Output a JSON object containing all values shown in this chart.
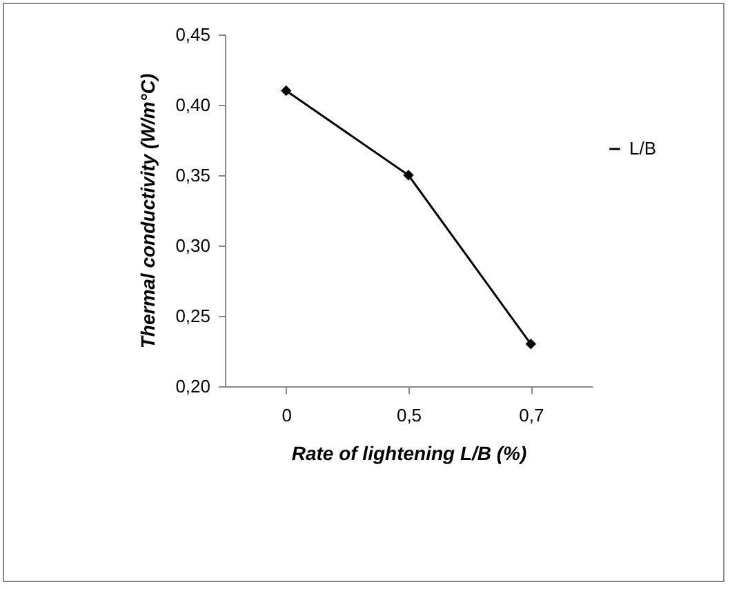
{
  "chart_data": {
    "type": "line",
    "xlabel": "Rate of lightening L/B (%)",
    "ylabel": "Thermal conductivity (W/m°C)",
    "categories": [
      "0",
      "0,5",
      "0,7"
    ],
    "series": [
      {
        "name": "L/B",
        "color": "#000000",
        "values": [
          0.41,
          0.35,
          0.23
        ]
      }
    ],
    "ylim": [
      0.2,
      0.45
    ],
    "yticks": [
      {
        "value": 0.2,
        "label": "0,20"
      },
      {
        "value": 0.25,
        "label": "0,25"
      },
      {
        "value": 0.3,
        "label": "0,30"
      },
      {
        "value": 0.35,
        "label": "0,35"
      },
      {
        "value": 0.4,
        "label": "0,40"
      },
      {
        "value": 0.45,
        "label": "0,45"
      }
    ],
    "grid": false,
    "legend": "right",
    "marker": "diamond",
    "line_style": "solid"
  }
}
